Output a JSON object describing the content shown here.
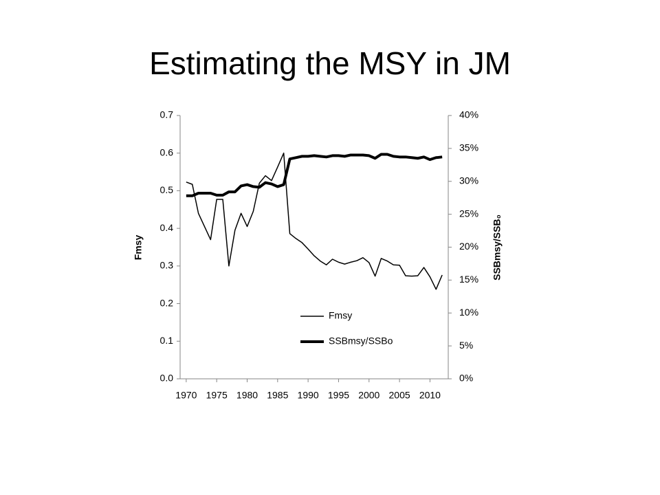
{
  "chart_data": {
    "type": "line",
    "title": "Estimating the MSY in JM",
    "ylabel": "Fmsy",
    "y2label": "SSBmsy/SSB₀",
    "x": [
      1970,
      1971,
      1972,
      1973,
      1974,
      1975,
      1976,
      1977,
      1978,
      1979,
      1980,
      1981,
      1982,
      1983,
      1984,
      1985,
      1986,
      1987,
      1988,
      1989,
      1990,
      1991,
      1992,
      1993,
      1994,
      1995,
      1996,
      1997,
      1998,
      1999,
      2000,
      2001,
      2002,
      2003,
      2004,
      2005,
      2006,
      2007,
      2008,
      2009,
      2010,
      2011,
      2012
    ],
    "xlim": [
      1969,
      2013
    ],
    "xticks": [
      1970,
      1975,
      1980,
      1985,
      1990,
      1995,
      2000,
      2005,
      2010
    ],
    "ylim": [
      0,
      0.7
    ],
    "yticks": [
      {
        "value": 0,
        "label": "0.0"
      },
      0.1,
      0.2,
      0.3,
      0.4,
      0.5,
      0.6,
      0.7
    ],
    "y2lim": [
      0,
      40
    ],
    "y2ticks": [
      {
        "value": 0,
        "label": "0%"
      },
      {
        "value": 5,
        "label": "5%"
      },
      {
        "value": 10,
        "label": "10%"
      },
      {
        "value": 15,
        "label": "15%"
      },
      {
        "value": 20,
        "label": "20%"
      },
      {
        "value": 25,
        "label": "25%"
      },
      {
        "value": 30,
        "label": "30%"
      },
      {
        "value": 35,
        "label": "35%"
      },
      {
        "value": 40,
        "label": "40%"
      }
    ],
    "series": [
      {
        "name": "Fmsy",
        "color": "#000000",
        "width": 1.5,
        "values": [
          0.523,
          0.517,
          0.44,
          0.405,
          0.37,
          0.477,
          0.477,
          0.3,
          0.395,
          0.44,
          0.405,
          0.445,
          0.52,
          0.54,
          0.527,
          0.563,
          0.6,
          0.386,
          0.373,
          0.362,
          0.345,
          0.327,
          0.313,
          0.303,
          0.318,
          0.31,
          0.305,
          0.31,
          0.314,
          0.322,
          0.309,
          0.273,
          0.32,
          0.313,
          0.303,
          0.302,
          0.274,
          0.273,
          0.274,
          0.296,
          0.271,
          0.238,
          0.276
        ]
      },
      {
        "name": "SSBmsy/SSBo",
        "color": "#000000",
        "width": 4,
        "axis": "y2",
        "values": [
          27.8,
          27.8,
          28.2,
          28.2,
          28.2,
          27.9,
          27.9,
          28.4,
          28.4,
          29.3,
          29.5,
          29.2,
          29.1,
          29.8,
          29.6,
          29.2,
          29.5,
          33.4,
          33.6,
          33.8,
          33.8,
          33.9,
          33.8,
          33.7,
          33.9,
          33.9,
          33.8,
          34.0,
          34.0,
          34.0,
          33.9,
          33.5,
          34.1,
          34.1,
          33.8,
          33.7,
          33.7,
          33.6,
          33.5,
          33.7,
          33.3,
          33.6,
          33.7
        ]
      }
    ]
  }
}
